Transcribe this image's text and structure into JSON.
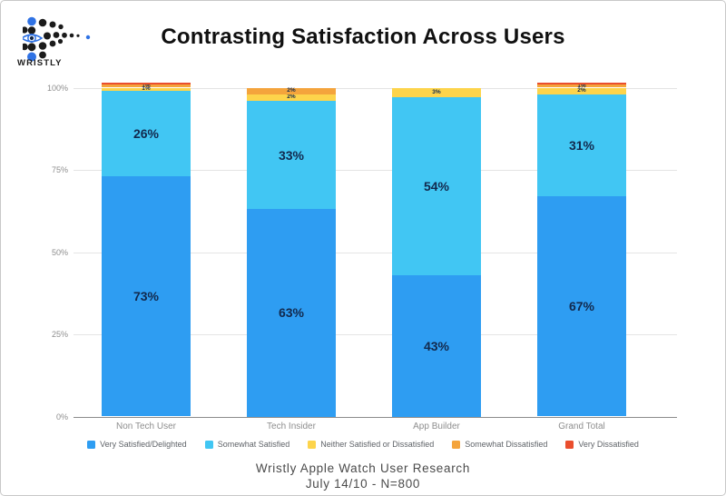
{
  "header": {
    "title": "Contrasting Satisfaction Across Users",
    "logo_text": "WRISTLY"
  },
  "footer": {
    "line1": "Wristly Apple Watch User Research",
    "line2": "July 14/10 - N=800"
  },
  "chart_data": {
    "type": "bar",
    "stacked": true,
    "title": "Contrasting Satisfaction Across Users",
    "categories": [
      "Non Tech User",
      "Tech Insider",
      "App Builder",
      "Grand Total"
    ],
    "series": [
      {
        "name": "Very Satisfied/Delighted",
        "color": "#2e9df2",
        "values": [
          73,
          63,
          43,
          67
        ],
        "labels": [
          "73%",
          "63%",
          "43%",
          "67%"
        ]
      },
      {
        "name": "Somewhat Satisfied",
        "color": "#41c6f3",
        "values": [
          26,
          33,
          54,
          31
        ],
        "labels": [
          "26%",
          "33%",
          "54%",
          "31%"
        ]
      },
      {
        "name": "Neither Satisfied or Dissatisfied",
        "color": "#fdd44b",
        "values": [
          1,
          2,
          3,
          2
        ],
        "labels": [
          "1%",
          "2%",
          "3%",
          "2%"
        ]
      },
      {
        "name": "Somewhat Dissatisfied",
        "color": "#f4a43c",
        "values": [
          1,
          2,
          0,
          1
        ],
        "labels": [
          "1%",
          "2%",
          "",
          "1%"
        ]
      },
      {
        "name": "Very Dissatisfied",
        "color": "#ea4e2e",
        "values": [
          0.5,
          0,
          0,
          0.5
        ],
        "labels": [
          "",
          "",
          "",
          ""
        ]
      }
    ],
    "y_ticks": [
      "0%",
      "25%",
      "50%",
      "75%",
      "100%"
    ],
    "ylim": [
      0,
      100
    ],
    "grid": true,
    "legend_position": "bottom",
    "value_label_color": "#12294d"
  }
}
